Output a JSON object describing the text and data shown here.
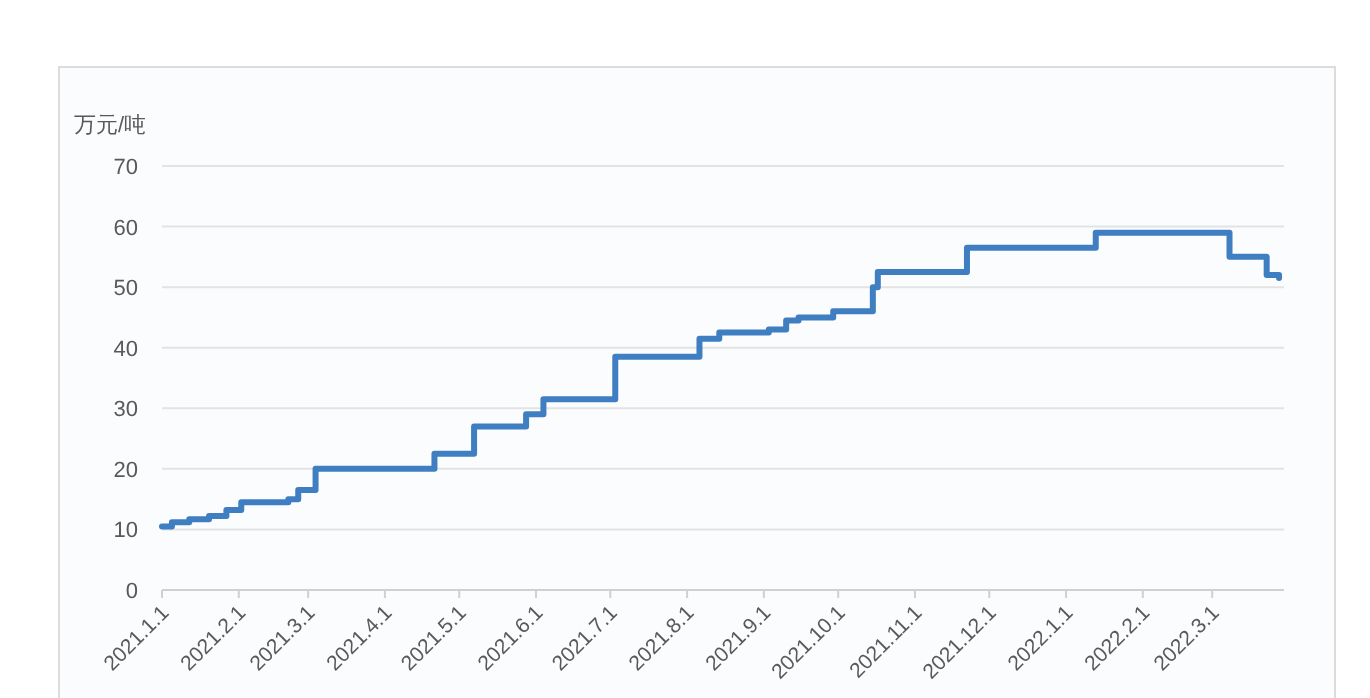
{
  "chart_data": {
    "type": "step",
    "ylabel": "万元/吨",
    "color": "#3f7fc1",
    "grid": "y",
    "x": [
      "2021-01-01",
      "2021-01-05",
      "2021-01-12",
      "2021-01-20",
      "2021-01-27",
      "2021-02-02",
      "2021-02-21",
      "2021-02-25",
      "2021-03-04",
      "2021-04-21",
      "2021-05-07",
      "2021-05-28",
      "2021-06-04",
      "2021-07-03",
      "2021-08-06",
      "2021-08-14",
      "2021-09-03",
      "2021-09-10",
      "2021-09-15",
      "2021-09-29",
      "2021-10-15",
      "2021-10-17",
      "2021-11-22",
      "2022-01-13",
      "2022-03-08",
      "2022-03-23",
      "2022-03-28"
    ],
    "values": [
      10.5,
      11.2,
      11.7,
      12.2,
      13.2,
      14.5,
      15.0,
      16.5,
      20.0,
      22.5,
      27.0,
      29.0,
      31.5,
      38.5,
      41.5,
      42.5,
      43.0,
      44.5,
      45.0,
      46.0,
      50.0,
      52.5,
      56.5,
      59.0,
      55.0,
      52.0,
      51.5
    ],
    "ylim": [
      0,
      70
    ],
    "yticks": [
      0,
      10,
      20,
      30,
      40,
      50,
      60,
      70
    ],
    "xlim": [
      "2021-01-01",
      "2022-03-30"
    ],
    "xticks": [
      {
        "value": "2021-01-01",
        "label": "2021.1.1"
      },
      {
        "value": "2021-02-01",
        "label": "2021.2.1"
      },
      {
        "value": "2021-03-01",
        "label": "2021.3.1"
      },
      {
        "value": "2021-04-01",
        "label": "2021.4.1"
      },
      {
        "value": "2021-05-01",
        "label": "2021.5.1"
      },
      {
        "value": "2021-06-01",
        "label": "2021.6.1"
      },
      {
        "value": "2021-07-01",
        "label": "2021.7.1"
      },
      {
        "value": "2021-08-01",
        "label": "2021.8.1"
      },
      {
        "value": "2021-09-01",
        "label": "2021.9.1"
      },
      {
        "value": "2021-10-01",
        "label": "2021.10.1"
      },
      {
        "value": "2021-11-01",
        "label": "2021.11.1"
      },
      {
        "value": "2021-12-01",
        "label": "2021.12.1"
      },
      {
        "value": "2022-01-01",
        "label": "2022.1.1"
      },
      {
        "value": "2022-02-01",
        "label": "2022.2.1"
      },
      {
        "value": "2022-03-01",
        "label": "2022.3.1"
      }
    ]
  }
}
